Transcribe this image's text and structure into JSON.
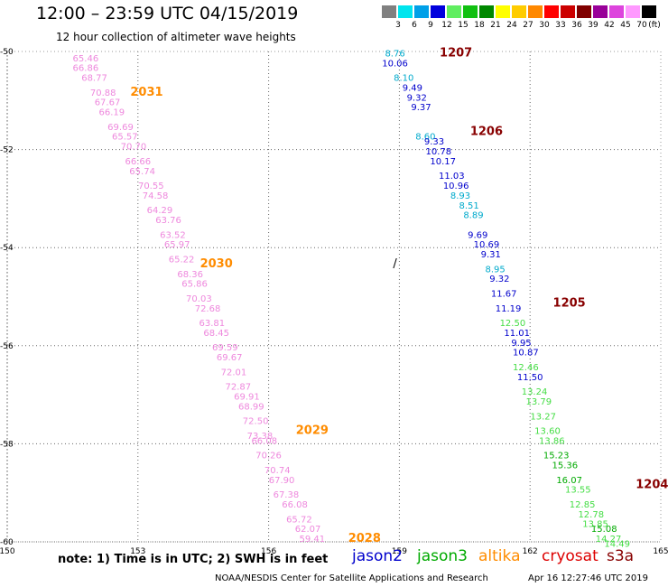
{
  "header": {
    "title": "12:00 – 23:59 UTC 04/15/2019",
    "subtitle": "12 hour collection of altimeter wave heights"
  },
  "legend": {
    "unit": "(ft)",
    "bins": [
      {
        "label": "3",
        "color": "#808080"
      },
      {
        "label": "6",
        "color": "#00e5ee"
      },
      {
        "label": "9",
        "color": "#00a0e8"
      },
      {
        "label": "12",
        "color": "#0000dd"
      },
      {
        "label": "15",
        "color": "#60ee60"
      },
      {
        "label": "18",
        "color": "#10c010"
      },
      {
        "label": "21",
        "color": "#008800"
      },
      {
        "label": "24",
        "color": "#ffff00"
      },
      {
        "label": "27",
        "color": "#ffcc00"
      },
      {
        "label": "30",
        "color": "#ff8800"
      },
      {
        "label": "33",
        "color": "#ff0000"
      },
      {
        "label": "36",
        "color": "#cc0000"
      },
      {
        "label": "39",
        "color": "#800000"
      },
      {
        "label": "42",
        "color": "#990099"
      },
      {
        "label": "45",
        "color": "#dd44dd"
      },
      {
        "label": "70",
        "color": "#ff99ff"
      },
      {
        "label": "",
        "color": "#000000"
      }
    ]
  },
  "footer": {
    "note": "note:  1) Time is in UTC;  2) SWH is in feet",
    "credit": "NOAA/NESDIS Center for Satellite Applications and Research",
    "timestamp": "Apr 16 12:27:46 UTC 2019",
    "satellites": [
      {
        "name": "jason2",
        "color": "#0000cc"
      },
      {
        "name": "jason3",
        "color": "#00aa00"
      },
      {
        "name": "altika",
        "color": "#ff8c00"
      },
      {
        "name": "cryosat",
        "color": "#dd0000"
      },
      {
        "name": "s3a",
        "color": "#880000"
      }
    ]
  },
  "chart_data": {
    "type": "scatter",
    "title": "12:00 – 23:59 UTC 04/15/2019",
    "subtitle": "12 hour collection of altimeter wave heights",
    "xlim": [
      150,
      165
    ],
    "ylim": [
      -60,
      -50
    ],
    "x_ticks": [
      150,
      153,
      156,
      159,
      162,
      165
    ],
    "y_ticks": [
      -50,
      -52,
      -54,
      -56,
      -58,
      -60
    ],
    "grid": true,
    "tracks": [
      {
        "name": "altika",
        "color": "#ff66cc",
        "points": [
          {
            "lon": 151.8,
            "lat": -50.2,
            "v": "65.46"
          },
          {
            "lon": 151.8,
            "lat": -50.4,
            "v": "66.86"
          },
          {
            "lon": 152.0,
            "lat": -50.6,
            "v": "68.77"
          },
          {
            "lon": 152.2,
            "lat": -50.9,
            "v": "70.88"
          },
          {
            "lon": 152.3,
            "lat": -51.1,
            "v": "67.67"
          },
          {
            "lon": 152.4,
            "lat": -51.3,
            "v": "66.19"
          },
          {
            "lon": 152.6,
            "lat": -51.6,
            "v": "69.69"
          },
          {
            "lon": 152.7,
            "lat": -51.8,
            "v": "65.57"
          },
          {
            "lon": 152.9,
            "lat": -52.0,
            "v": "70.70"
          },
          {
            "lon": 153.0,
            "lat": -52.3,
            "v": "66.66"
          },
          {
            "lon": 153.1,
            "lat": -52.5,
            "v": "65.74"
          },
          {
            "lon": 153.3,
            "lat": -52.8,
            "v": "70.55"
          },
          {
            "lon": 153.4,
            "lat": -53.0,
            "v": "74.58"
          },
          {
            "lon": 153.5,
            "lat": -53.3,
            "v": "64.29"
          },
          {
            "lon": 153.7,
            "lat": -53.5,
            "v": "63.76"
          },
          {
            "lon": 153.8,
            "lat": -53.8,
            "v": "63.52"
          },
          {
            "lon": 153.9,
            "lat": -54.0,
            "v": "65.97"
          },
          {
            "lon": 154.0,
            "lat": -54.3,
            "v": "65.22"
          },
          {
            "lon": 154.2,
            "lat": -54.6,
            "v": "68.36"
          },
          {
            "lon": 154.3,
            "lat": -54.8,
            "v": "65.86"
          },
          {
            "lon": 154.4,
            "lat": -55.1,
            "v": "70.03"
          },
          {
            "lon": 154.6,
            "lat": -55.3,
            "v": "72.68"
          },
          {
            "lon": 154.7,
            "lat": -55.6,
            "v": "63.81"
          },
          {
            "lon": 154.8,
            "lat": -55.8,
            "v": "68.45"
          },
          {
            "lon": 155.0,
            "lat": -56.1,
            "v": "69.59"
          },
          {
            "lon": 155.1,
            "lat": -56.3,
            "v": "69.67"
          },
          {
            "lon": 155.2,
            "lat": -56.6,
            "v": "72.01"
          },
          {
            "lon": 155.3,
            "lat": -56.9,
            "v": "72.87"
          },
          {
            "lon": 155.5,
            "lat": -57.1,
            "v": "69.91"
          },
          {
            "lon": 155.6,
            "lat": -57.3,
            "v": "68.99"
          },
          {
            "lon": 155.7,
            "lat": -57.6,
            "v": "72.50"
          },
          {
            "lon": 155.8,
            "lat": -57.9,
            "v": "73.38"
          },
          {
            "lon": 155.9,
            "lat": -58.0,
            "v": "66.08"
          },
          {
            "lon": 156.0,
            "lat": -58.3,
            "v": "70.26"
          },
          {
            "lon": 156.2,
            "lat": -58.6,
            "v": "70.74"
          },
          {
            "lon": 156.3,
            "lat": -58.8,
            "v": "67.90"
          },
          {
            "lon": 156.4,
            "lat": -59.1,
            "v": "67.38"
          },
          {
            "lon": 156.6,
            "lat": -59.3,
            "v": "66.08"
          },
          {
            "lon": 156.7,
            "lat": -59.6,
            "v": "65.72"
          },
          {
            "lon": 156.9,
            "lat": -59.8,
            "v": "62.07"
          },
          {
            "lon": 157.0,
            "lat": -60.0,
            "v": "59.41"
          }
        ]
      },
      {
        "name": "jason2",
        "color": "#0000cc",
        "points": [
          {
            "lon": 158.9,
            "lat": -50.1,
            "v": "8.76"
          },
          {
            "lon": 158.9,
            "lat": -50.3,
            "v": "10.06"
          },
          {
            "lon": 159.1,
            "lat": -50.6,
            "v": "8.10"
          },
          {
            "lon": 159.3,
            "lat": -50.8,
            "v": "9.49"
          },
          {
            "lon": 159.4,
            "lat": -51.0,
            "v": "9.32"
          },
          {
            "lon": 159.5,
            "lat": -51.2,
            "v": "9.37"
          },
          {
            "lon": 159.6,
            "lat": -51.8,
            "v": "8.60"
          },
          {
            "lon": 159.8,
            "lat": -51.9,
            "v": "9.33"
          },
          {
            "lon": 159.9,
            "lat": -52.1,
            "v": "10.78"
          },
          {
            "lon": 160.0,
            "lat": -52.3,
            "v": "10.17"
          },
          {
            "lon": 160.2,
            "lat": -52.6,
            "v": "11.03"
          },
          {
            "lon": 160.3,
            "lat": -52.8,
            "v": "10.96"
          },
          {
            "lon": 160.4,
            "lat": -53.0,
            "v": "8.93"
          },
          {
            "lon": 160.6,
            "lat": -53.2,
            "v": "8.51"
          },
          {
            "lon": 160.7,
            "lat": -53.4,
            "v": "8.89"
          },
          {
            "lon": 160.8,
            "lat": -53.8,
            "v": "9.69"
          },
          {
            "lon": 161.0,
            "lat": -54.0,
            "v": "10.69"
          },
          {
            "lon": 161.1,
            "lat": -54.2,
            "v": "9.31"
          },
          {
            "lon": 161.2,
            "lat": -54.5,
            "v": "8.95"
          },
          {
            "lon": 161.3,
            "lat": -54.7,
            "v": "9.32"
          },
          {
            "lon": 161.4,
            "lat": -55.0,
            "v": "11.67"
          },
          {
            "lon": 161.5,
            "lat": -55.3,
            "v": "11.19"
          },
          {
            "lon": 161.6,
            "lat": -55.6,
            "v": "12.50"
          },
          {
            "lon": 161.7,
            "lat": -55.8,
            "v": "11.01"
          },
          {
            "lon": 161.8,
            "lat": -56.0,
            "v": "9.95"
          },
          {
            "lon": 161.9,
            "lat": -56.2,
            "v": "10.87"
          },
          {
            "lon": 161.9,
            "lat": -56.5,
            "v": "12.46"
          },
          {
            "lon": 162.0,
            "lat": -56.7,
            "v": "11.50"
          },
          {
            "lon": 162.1,
            "lat": -57.0,
            "v": "13.24"
          },
          {
            "lon": 162.2,
            "lat": -57.2,
            "v": "13.79"
          },
          {
            "lon": 162.3,
            "lat": -57.5,
            "v": "13.27"
          },
          {
            "lon": 162.4,
            "lat": -57.8,
            "v": "13.60"
          },
          {
            "lon": 162.5,
            "lat": -58.0,
            "v": "13.86"
          },
          {
            "lon": 162.6,
            "lat": -58.3,
            "v": "15.23"
          },
          {
            "lon": 162.8,
            "lat": -58.5,
            "v": "15.36"
          },
          {
            "lon": 162.9,
            "lat": -58.8,
            "v": "16.07"
          },
          {
            "lon": 163.1,
            "lat": -59.0,
            "v": "13.55"
          },
          {
            "lon": 163.2,
            "lat": -59.3,
            "v": "12.85"
          },
          {
            "lon": 163.4,
            "lat": -59.5,
            "v": "12.78"
          },
          {
            "lon": 163.5,
            "lat": -59.7,
            "v": "13.85"
          },
          {
            "lon": 163.7,
            "lat": -59.8,
            "v": "15.08"
          },
          {
            "lon": 163.8,
            "lat": -60.0,
            "v": "14.27"
          },
          {
            "lon": 164.0,
            "lat": -60.1,
            "v": "14.49"
          }
        ]
      }
    ],
    "time_labels": [
      {
        "text": "2031",
        "lon": 153.2,
        "lat": -50.9,
        "color": "#ff8c00"
      },
      {
        "text": "2030",
        "lon": 154.8,
        "lat": -54.4,
        "color": "#ff8c00"
      },
      {
        "text": "2029",
        "lon": 157.0,
        "lat": -57.8,
        "color": "#ff8c00"
      },
      {
        "text": "2028",
        "lon": 158.2,
        "lat": -60.0,
        "color": "#ff8c00"
      },
      {
        "text": "1207",
        "lon": 160.3,
        "lat": -50.1,
        "color": "#880000"
      },
      {
        "text": "1206",
        "lon": 161.0,
        "lat": -51.7,
        "color": "#880000"
      },
      {
        "text": "1205",
        "lon": 162.9,
        "lat": -55.2,
        "color": "#880000"
      },
      {
        "text": "1204",
        "lon": 164.8,
        "lat": -58.9,
        "color": "#880000"
      }
    ]
  }
}
